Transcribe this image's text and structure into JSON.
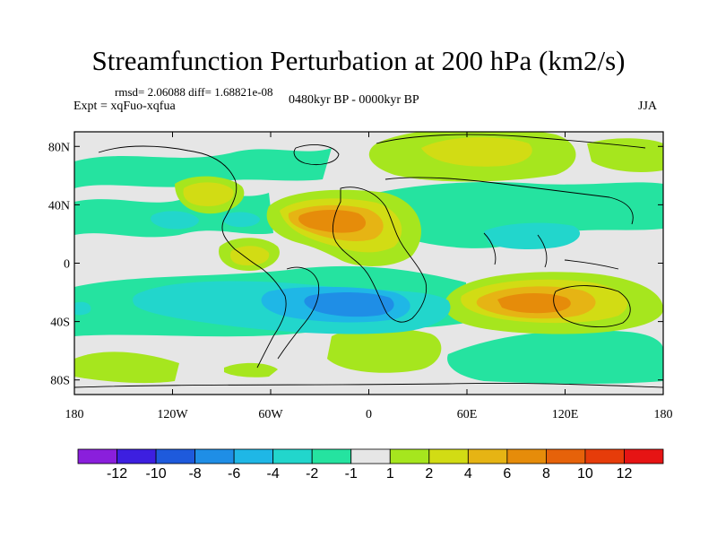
{
  "title": "Streamfunction Perturbation at 200 hPa (km2/s)",
  "stats": "rmsd= 2.06088 diff= 1.68821e-08",
  "expt": "Expt = xqFuo-xqfua",
  "period": "0480kyr BP - 0000kyr BP",
  "season": "JJA",
  "lat_ticks": [
    "80N",
    "40N",
    "0",
    "40S",
    "80S"
  ],
  "lon_ticks": [
    "180",
    "120W",
    "60W",
    "0",
    "60E",
    "120E",
    "180"
  ],
  "colorbar": {
    "labels": [
      "-12",
      "-10",
      "-8",
      "-6",
      "-4",
      "-2",
      "-1",
      "1",
      "2",
      "4",
      "6",
      "8",
      "10",
      "12"
    ],
    "colors": [
      "#8a1fdc",
      "#3d1fe0",
      "#1e5adc",
      "#1f8ee6",
      "#1fb7e6",
      "#22d6cc",
      "#25e3a0",
      "#e6e6e6",
      "#a6e61e",
      "#d2dc14",
      "#e6b414",
      "#e68c0a",
      "#e6620a",
      "#e63c0a",
      "#e61414"
    ]
  },
  "chart_data": {
    "type": "heatmap",
    "title": "Streamfunction Perturbation at 200 hPa (km2/s)",
    "units": "km2/s",
    "levels": [
      -12,
      -10,
      -8,
      -6,
      -4,
      -2,
      -1,
      1,
      2,
      4,
      6,
      8,
      10,
      12
    ],
    "lon_range": [
      -180,
      180
    ],
    "lat_range": [
      -90,
      90
    ],
    "features": [
      {
        "name": "east-atlantic-high",
        "lon": -25,
        "lat": 28,
        "value": 8
      },
      {
        "name": "indian-ocean-high",
        "lon": 95,
        "lat": -25,
        "value": 8
      },
      {
        "name": "south-atlantic-low",
        "lon": -10,
        "lat": -26,
        "value": -6
      },
      {
        "name": "north-america-high",
        "lon": -105,
        "lat": 45,
        "value": 4
      },
      {
        "name": "central-america-high",
        "lon": -75,
        "lat": 5,
        "value": 4
      },
      {
        "name": "eurasia-arctic-high",
        "lon": 60,
        "lat": 72,
        "value": 2
      },
      {
        "name": "south-pacific-low",
        "lon": -110,
        "lat": -25,
        "value": -4
      },
      {
        "name": "maritime-continent-low",
        "lon": 100,
        "lat": 10,
        "value": -2
      }
    ]
  }
}
